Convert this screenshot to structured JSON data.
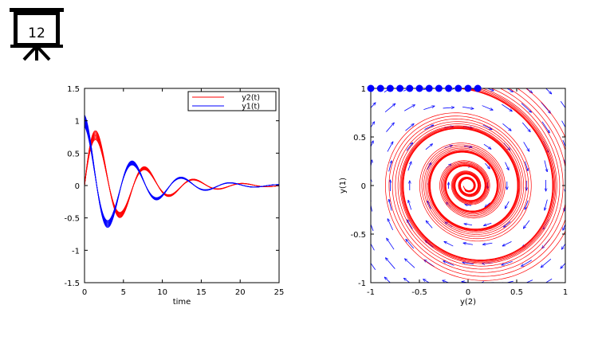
{
  "slide": {
    "number": "12"
  },
  "chart_data": [
    {
      "type": "line",
      "xlabel": "time",
      "ylabel": "",
      "xlim": [
        0,
        25
      ],
      "ylim": [
        -1.5,
        1.5
      ],
      "xticks": [
        "0",
        "5",
        "10",
        "15",
        "20",
        "25"
      ],
      "yticks": [
        "-1.5",
        "-1",
        "-0.5",
        "0",
        "0.5",
        "1",
        "1.5"
      ],
      "legend_position": "top-right",
      "series": [
        {
          "name": "y2(t)",
          "color": "#ff0000",
          "amplitude": 1.0,
          "decay": 0.17,
          "omega": 1.0,
          "phase": -1.5708,
          "band": 0.09,
          "copies": 10
        },
        {
          "name": "y1(t)",
          "color": "#0000ff",
          "amplitude": 1.0,
          "decay": 0.17,
          "omega": 1.0,
          "phase": 0.0,
          "band": 0.09,
          "copies": 10
        }
      ]
    },
    {
      "type": "scatter",
      "xlabel": "y(2)",
      "ylabel": "y(1)",
      "xlim": [
        -1,
        1
      ],
      "ylim": [
        -1,
        1
      ],
      "xticks": [
        "-1",
        "-0.5",
        "0",
        "0.5",
        "1"
      ],
      "yticks": [
        "-1",
        "-0.5",
        "0",
        "0.5",
        "1"
      ],
      "initial_points": [
        {
          "x": -1.0,
          "y": 1.0
        },
        {
          "x": -0.9,
          "y": 1.0
        },
        {
          "x": -0.8,
          "y": 1.0
        },
        {
          "x": -0.7,
          "y": 1.0
        },
        {
          "x": -0.6,
          "y": 1.0
        },
        {
          "x": -0.5,
          "y": 1.0
        },
        {
          "x": -0.4,
          "y": 1.0
        },
        {
          "x": -0.3,
          "y": 1.0
        },
        {
          "x": -0.2,
          "y": 1.0
        },
        {
          "x": -0.1,
          "y": 1.0
        },
        {
          "x": 0.0,
          "y": 1.0
        },
        {
          "x": 0.1,
          "y": 1.0
        }
      ],
      "trajectory_color": "#ff0000",
      "point_color": "#0000ff",
      "field_color": "#0000ff",
      "field": {
        "damping": 0.17,
        "grid": 11
      }
    }
  ]
}
